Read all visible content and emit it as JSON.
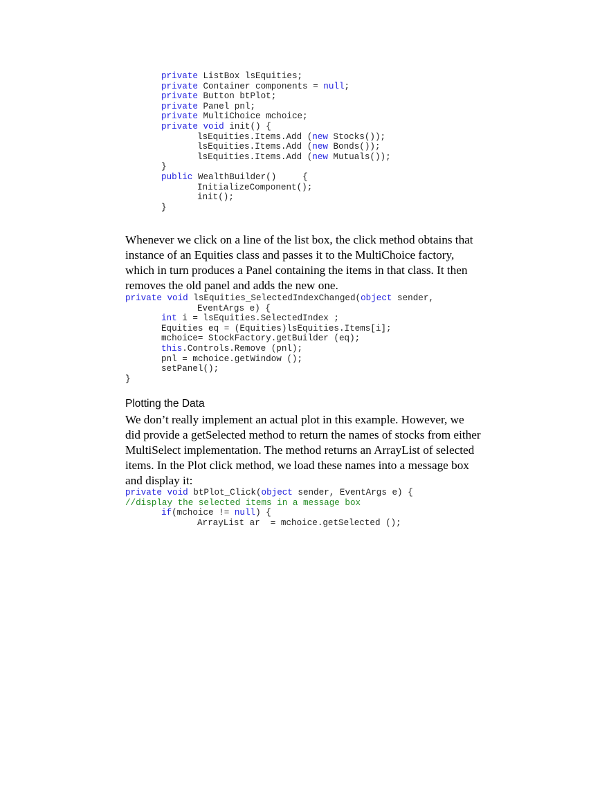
{
  "code_block_1": [
    {
      "indent": 1,
      "segs": [
        {
          "t": "private",
          "k": "kw"
        },
        {
          "t": " ListBox lsEquities;"
        }
      ]
    },
    {
      "indent": 1,
      "segs": [
        {
          "t": "private",
          "k": "kw"
        },
        {
          "t": " Container components = "
        },
        {
          "t": "null",
          "k": "kw"
        },
        {
          "t": ";"
        }
      ]
    },
    {
      "indent": 1,
      "segs": [
        {
          "t": "private",
          "k": "kw"
        },
        {
          "t": " Button btPlot;"
        }
      ]
    },
    {
      "indent": 1,
      "segs": [
        {
          "t": "private",
          "k": "kw"
        },
        {
          "t": " Panel pnl;"
        }
      ]
    },
    {
      "indent": 1,
      "segs": [
        {
          "t": "private",
          "k": "kw"
        },
        {
          "t": " MultiChoice mchoice;"
        }
      ]
    },
    {
      "indent": 1,
      "segs": [
        {
          "t": "private",
          "k": "kw"
        },
        {
          "t": " "
        },
        {
          "t": "void",
          "k": "kw"
        },
        {
          "t": " init() {"
        }
      ]
    },
    {
      "indent": 2,
      "segs": [
        {
          "t": "lsEquities.Items.Add ("
        },
        {
          "t": "new",
          "k": "kw"
        },
        {
          "t": " Stocks());"
        }
      ]
    },
    {
      "indent": 2,
      "segs": [
        {
          "t": "lsEquities.Items.Add ("
        },
        {
          "t": "new",
          "k": "kw"
        },
        {
          "t": " Bonds());"
        }
      ]
    },
    {
      "indent": 2,
      "segs": [
        {
          "t": "lsEquities.Items.Add ("
        },
        {
          "t": "new",
          "k": "kw"
        },
        {
          "t": " Mutuals());"
        }
      ]
    },
    {
      "indent": 1,
      "segs": [
        {
          "t": "}"
        }
      ]
    },
    {
      "indent": 1,
      "segs": [
        {
          "t": "public",
          "k": "kw"
        },
        {
          "t": " WealthBuilder()     {"
        }
      ]
    },
    {
      "indent": 2,
      "segs": [
        {
          "t": "InitializeComponent();"
        }
      ]
    },
    {
      "indent": 2,
      "segs": [
        {
          "t": "init();"
        }
      ]
    },
    {
      "indent": 1,
      "segs": [
        {
          "t": "}"
        }
      ]
    }
  ],
  "paragraph_1": [
    "Whenever we click on a line of the list box, the click method obtains that",
    "instance of an Equities class and passes it to the MultiChoice factory,",
    "which in turn produces a Panel containing the items in that class. It then",
    "removes the old panel and adds the new one."
  ],
  "code_block_2": [
    {
      "indent": 0,
      "segs": [
        {
          "t": "private",
          "k": "kw"
        },
        {
          "t": " "
        },
        {
          "t": "void",
          "k": "kw"
        },
        {
          "t": " lsEquities_SelectedIndexChanged("
        },
        {
          "t": "object",
          "k": "kw"
        },
        {
          "t": " sender,"
        }
      ]
    },
    {
      "indent": 2,
      "segs": [
        {
          "t": "EventArgs e) {"
        }
      ]
    },
    {
      "indent": 1,
      "segs": [
        {
          "t": "int",
          "k": "kw"
        },
        {
          "t": " i = lsEquities.SelectedIndex ;"
        }
      ]
    },
    {
      "indent": 1,
      "segs": [
        {
          "t": "Equities eq = (Equities)lsEquities.Items[i];"
        }
      ]
    },
    {
      "indent": 1,
      "segs": [
        {
          "t": "mchoice= StockFactory.getBuilder (eq);"
        }
      ]
    },
    {
      "indent": 1,
      "segs": [
        {
          "t": "this",
          "k": "kw"
        },
        {
          "t": ".Controls.Remove (pnl);"
        }
      ]
    },
    {
      "indent": 1,
      "segs": [
        {
          "t": "pnl = mchoice.getWindow ();"
        }
      ]
    },
    {
      "indent": 1,
      "segs": [
        {
          "t": "setPanel();"
        }
      ]
    },
    {
      "indent": 0,
      "segs": [
        {
          "t": "}"
        }
      ]
    }
  ],
  "heading": "Plotting the Data",
  "paragraph_2": [
    "We don’t really implement an actual plot in this example. However, we",
    "did provide a getSelected method to return the names of stocks from either",
    "MultiSelect implementation. The method returns an ArrayList of selected",
    "items. In the Plot click method, we load these names into a message box",
    "and display it:"
  ],
  "code_block_3": [
    {
      "indent": 0,
      "segs": [
        {
          "t": "private",
          "k": "kw"
        },
        {
          "t": " "
        },
        {
          "t": "void",
          "k": "kw"
        },
        {
          "t": " btPlot_Click("
        },
        {
          "t": "object",
          "k": "kw"
        },
        {
          "t": " sender, EventArgs e) {"
        }
      ]
    },
    {
      "indent": 0,
      "segs": [
        {
          "t": "//display the selected items in a message box",
          "k": "cm"
        }
      ]
    },
    {
      "indent": 1,
      "segs": [
        {
          "t": "if",
          "k": "kw"
        },
        {
          "t": "(mchoice != "
        },
        {
          "t": "null",
          "k": "kw"
        },
        {
          "t": ") {"
        }
      ]
    },
    {
      "indent": 2,
      "segs": [
        {
          "t": "ArrayList ar  = mchoice.getSelected ();"
        }
      ]
    }
  ],
  "colors": {
    "keyword": "#2222dd",
    "comment": "#228b22",
    "text": "#222222"
  }
}
